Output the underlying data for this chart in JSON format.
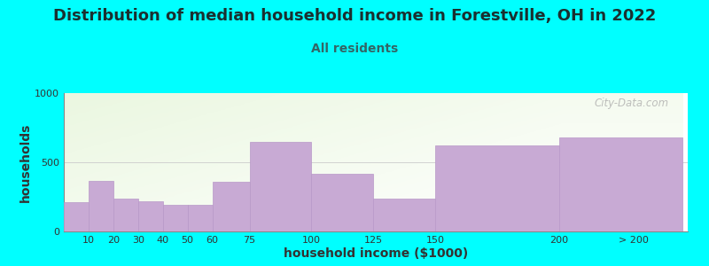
{
  "title": "Distribution of median household income in Forestville, OH in 2022",
  "subtitle": "All residents",
  "xlabel": "household income ($1000)",
  "ylabel": "households",
  "background_color": "#00FFFF",
  "bar_color": "#c8aad4",
  "bar_edge_color": "#b898c8",
  "categories": [
    "10",
    "20",
    "30",
    "40",
    "50",
    "60",
    "75",
    "100",
    "125",
    "150",
    "200",
    "> 200"
  ],
  "values": [
    210,
    365,
    240,
    215,
    195,
    190,
    360,
    650,
    415,
    235,
    625,
    680
  ],
  "bin_lefts": [
    0,
    10,
    20,
    30,
    40,
    50,
    60,
    75,
    100,
    125,
    150,
    200
  ],
  "bin_rights": [
    10,
    20,
    30,
    40,
    50,
    60,
    75,
    100,
    125,
    150,
    200,
    250
  ],
  "ylim": [
    0,
    1000
  ],
  "yticks": [
    0,
    500,
    1000
  ],
  "tick_positions": [
    10,
    20,
    30,
    40,
    50,
    60,
    75,
    100,
    125,
    150,
    200,
    230
  ],
  "tick_labels": [
    "10",
    "20",
    "30",
    "40",
    "50",
    "60",
    "75",
    "100",
    "125",
    "150",
    "200",
    "> 200"
  ],
  "title_fontsize": 13,
  "subtitle_fontsize": 10,
  "axis_label_fontsize": 10,
  "ytick_fontsize": 8,
  "xtick_fontsize": 8,
  "watermark_text": "City-Data.com",
  "title_color": "#1a3030",
  "subtitle_color": "#336666",
  "axis_label_color": "#333333",
  "tick_color": "#333333"
}
